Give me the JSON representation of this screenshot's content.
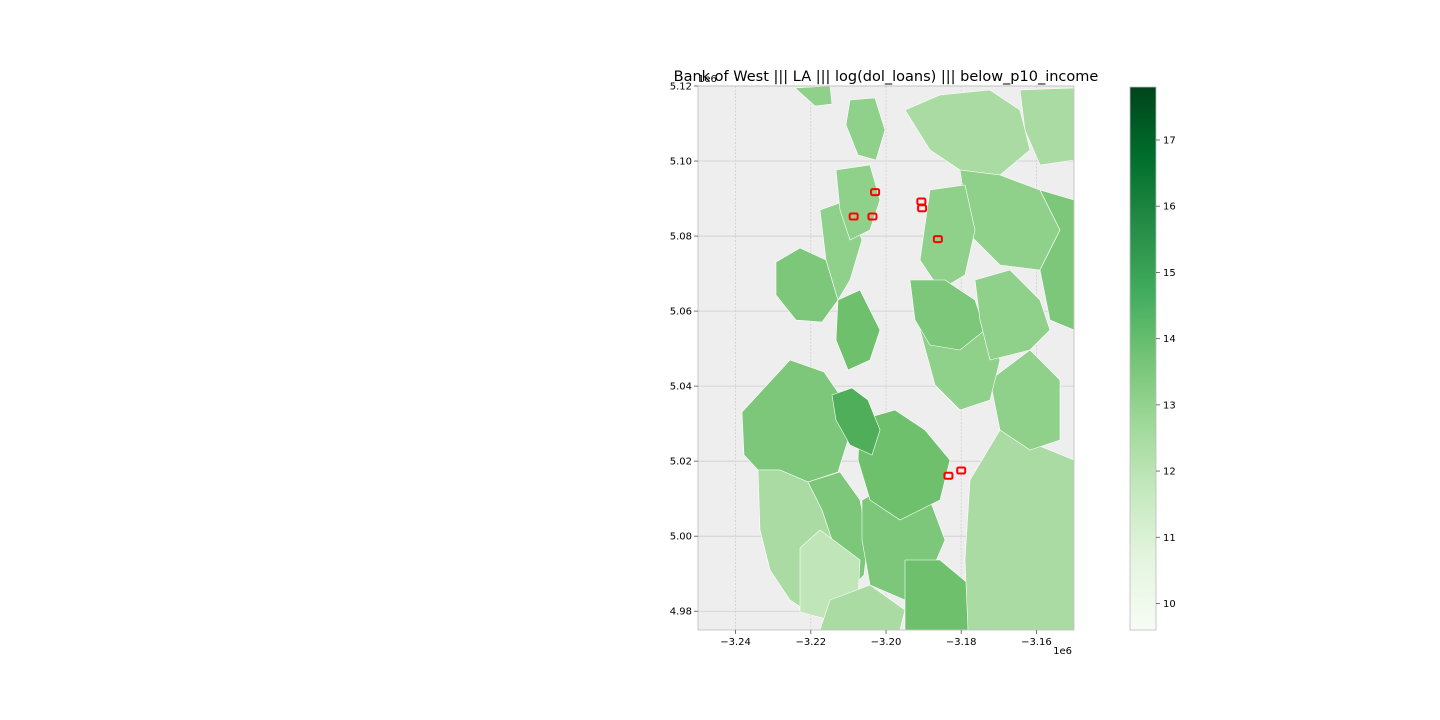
{
  "chart_data": {
    "type": "choropleth",
    "title": "Bank of West ||| LA ||| log(dol_loans) ||| below_p10_income",
    "x_axis": {
      "range": [
        -3.25,
        -3.15
      ],
      "ticks": [
        -3.24,
        -3.22,
        -3.2,
        -3.18,
        -3.16
      ],
      "tick_labels": [
        "−3.24",
        "−3.22",
        "−3.20",
        "−3.18",
        "−3.16"
      ],
      "multiplier": "1e6"
    },
    "y_axis": {
      "range": [
        4.975,
        5.12
      ],
      "ticks": [
        4.98,
        5.0,
        5.02,
        5.04,
        5.06,
        5.08,
        5.1,
        5.12
      ],
      "tick_labels": [
        "4.98",
        "5.00",
        "5.02",
        "5.04",
        "5.06",
        "5.08",
        "5.10",
        "5.12"
      ],
      "multiplier": "1e6"
    },
    "grid": true,
    "colorbar": {
      "colormap": "Greens",
      "range": [
        9.6,
        17.8
      ],
      "ticks": [
        10,
        11,
        12,
        13,
        14,
        15,
        16,
        17
      ],
      "tick_labels": [
        "10",
        "11",
        "12",
        "13",
        "14",
        "15",
        "16",
        "17"
      ]
    },
    "highlight_color": "#ff0000",
    "highlighted_tracts": [
      {
        "x": -3.2086,
        "y": 5.0852
      },
      {
        "x": -3.2036,
        "y": 5.0852
      },
      {
        "x": -3.2029,
        "y": 5.0917
      },
      {
        "x": -3.1906,
        "y": 5.0892
      },
      {
        "x": -3.1904,
        "y": 5.0874
      },
      {
        "x": -3.1862,
        "y": 5.0792
      },
      {
        "x": -3.1834,
        "y": 5.0161
      },
      {
        "x": -3.18,
        "y": 5.0175
      }
    ]
  }
}
